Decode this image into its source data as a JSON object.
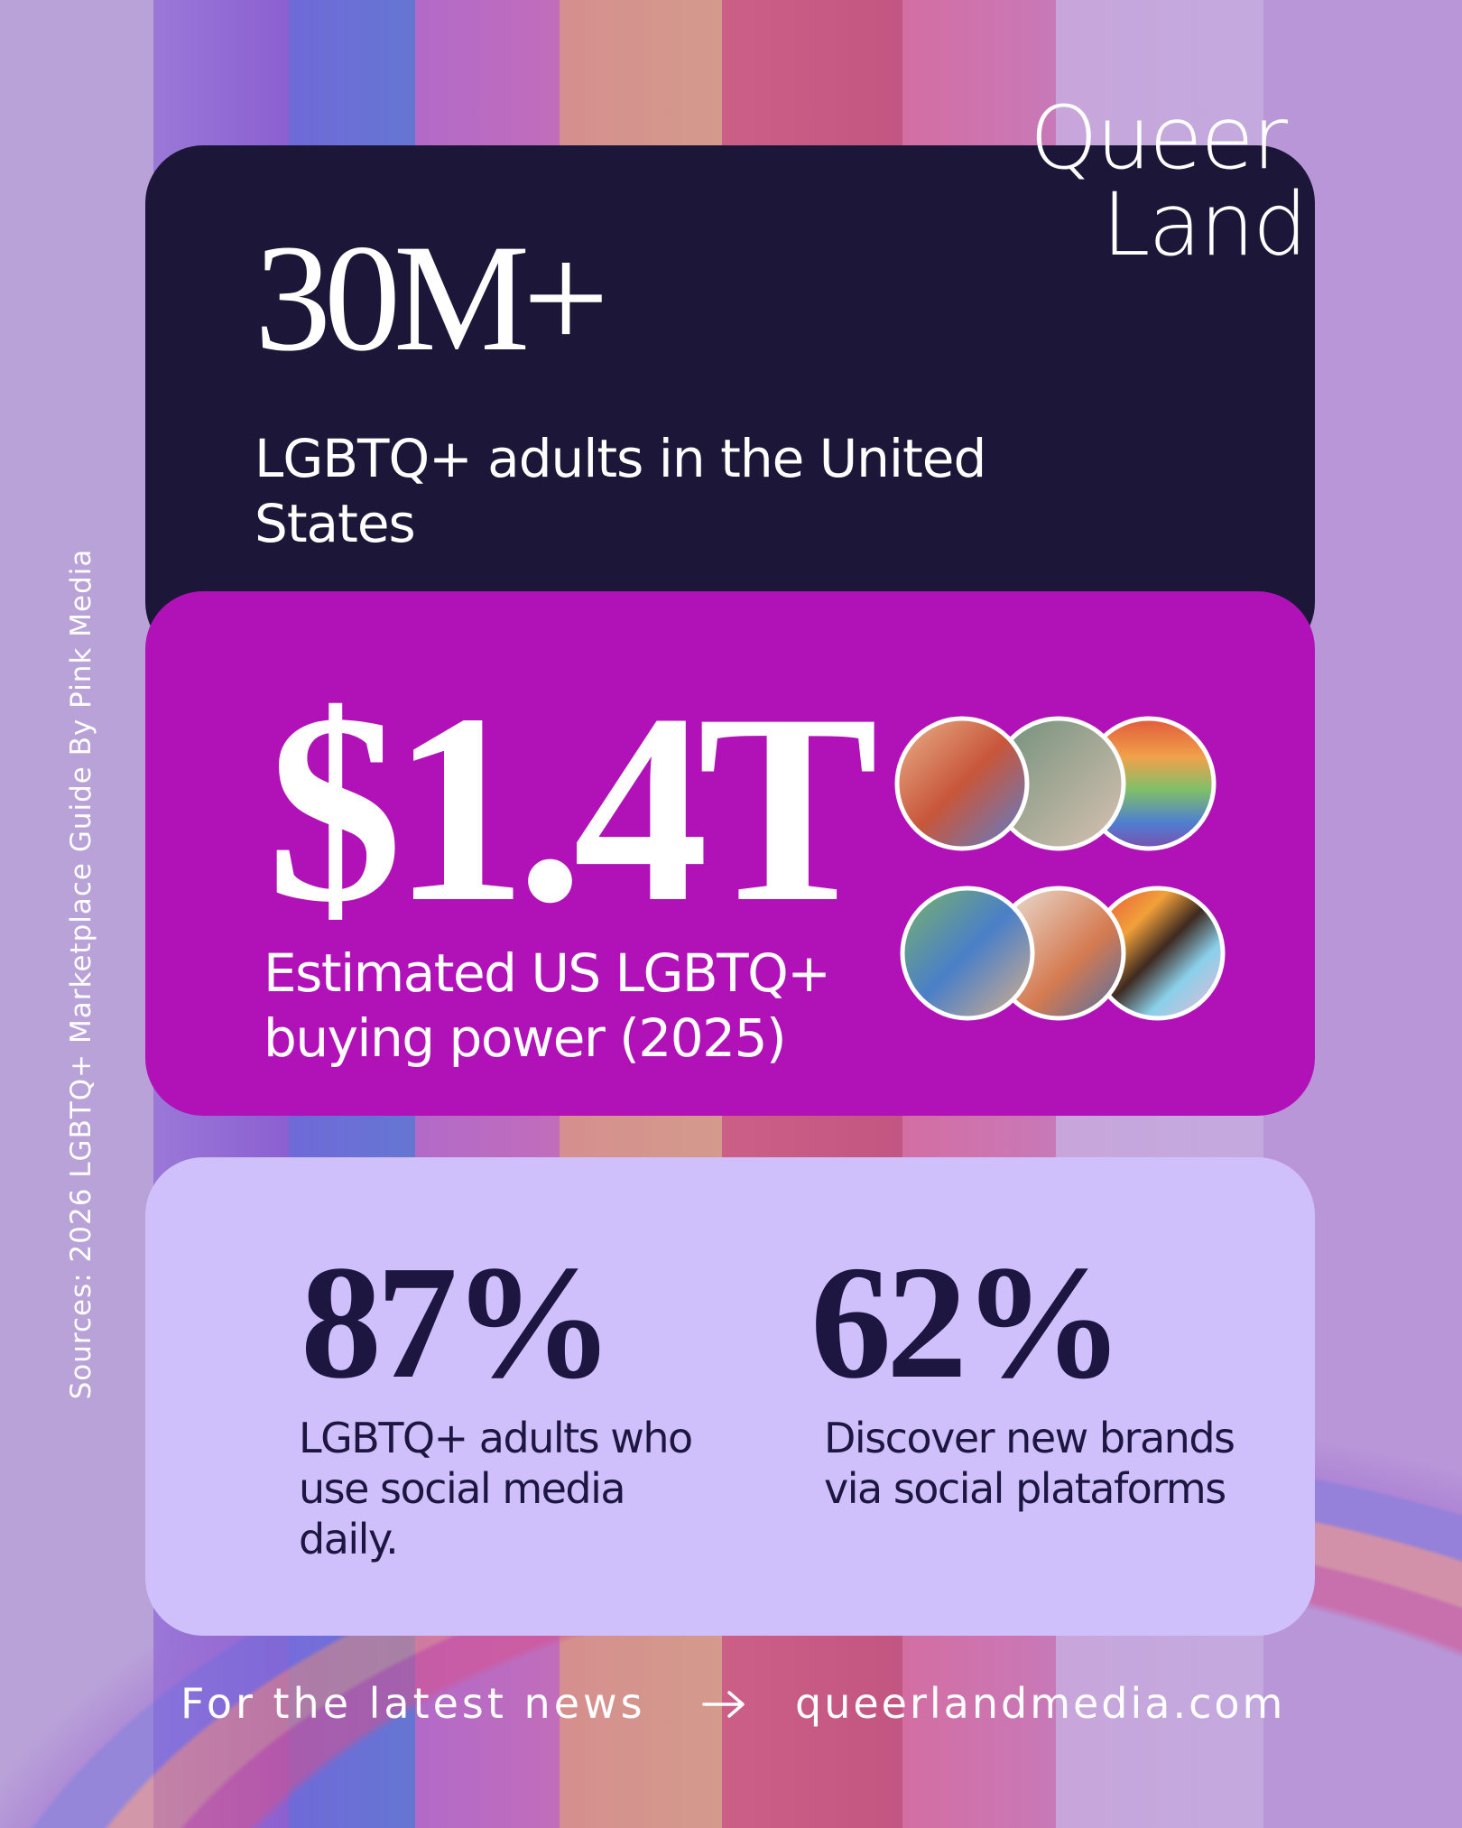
{
  "logo": {
    "line1": "Queer",
    "line2": "Land"
  },
  "side_note": "Sources: 2026 LGBTQ+ Marketplace Guide By Pink Media",
  "stats": [
    {
      "value": "30M+",
      "label": "LGBTQ+ adults in the United States"
    },
    {
      "value": "$1.4T",
      "label": "Estimated US LGBTQ+ buying power (2025)"
    },
    {
      "value": "87%",
      "label": "LGBTQ+ adults who use social media daily."
    },
    {
      "value": "62%",
      "label": "Discover new brands via social plataforms"
    }
  ],
  "footer": {
    "text": "For the latest news",
    "link": "queerlandmedia.com"
  }
}
